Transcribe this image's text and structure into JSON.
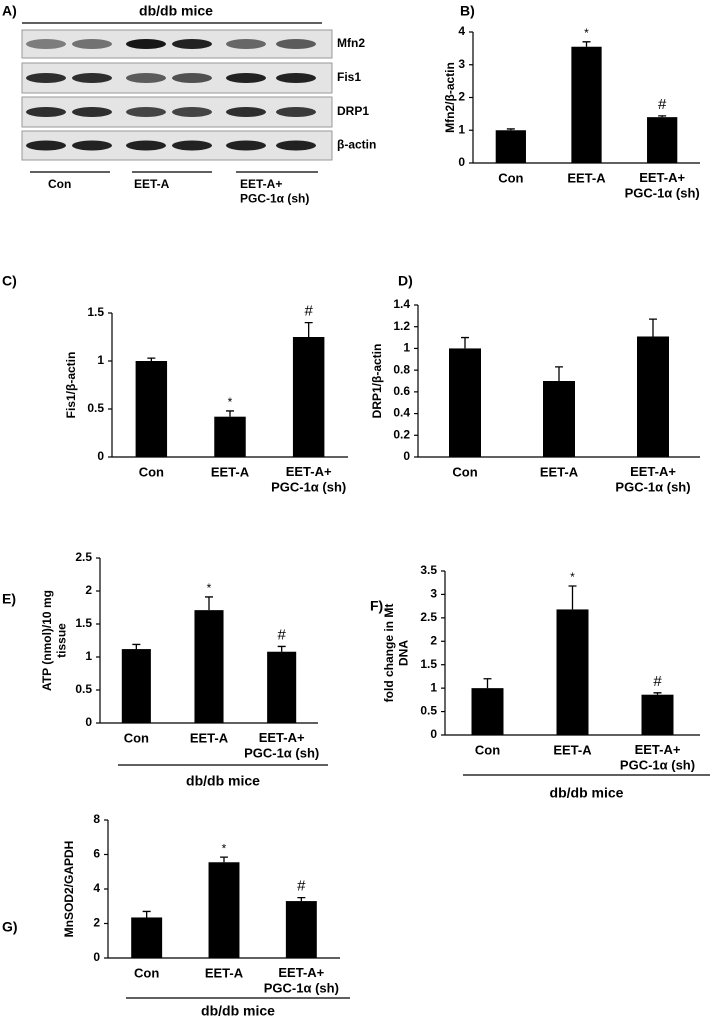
{
  "blot": {
    "label": "A)",
    "title": "db/db mice",
    "rows": [
      "Mfn2",
      "Fis1",
      "DRP1",
      "β-actin"
    ],
    "groups": [
      "Con",
      "EET-A",
      "EET-A+\nPGC-1α (sh)"
    ]
  },
  "chart_data": [
    {
      "type": "bar",
      "label": "B)",
      "ylabel": "Mfn2/β-actin",
      "categories": [
        "Con",
        "EET-A",
        "EET-A+\nPGC-1α (sh)"
      ],
      "values": [
        1.0,
        3.55,
        1.4
      ],
      "errors": [
        0.04,
        0.15,
        0.04
      ],
      "annotations": [
        null,
        "*",
        "#"
      ],
      "ylim": [
        0,
        4
      ],
      "yticks": [
        0,
        1,
        2,
        3,
        4
      ],
      "color": "#000000"
    },
    {
      "type": "bar",
      "label": "C)",
      "ylabel": "Fis1/β-actin",
      "categories": [
        "Con",
        "EET-A",
        "EET-A+\nPGC-1α (sh)"
      ],
      "values": [
        1.0,
        0.42,
        1.25
      ],
      "errors": [
        0.03,
        0.06,
        0.15
      ],
      "annotations": [
        null,
        "*",
        "#"
      ],
      "ylim": [
        0,
        1.5
      ],
      "yticks": [
        0,
        0.5,
        1,
        1.5
      ],
      "color": "#000000"
    },
    {
      "type": "bar",
      "label": "D)",
      "ylabel": "DRP1/β-actin",
      "categories": [
        "Con",
        "EET-A",
        "EET-A+\nPGC-1α (sh)"
      ],
      "values": [
        1.0,
        0.7,
        1.11
      ],
      "errors": [
        0.1,
        0.13,
        0.16
      ],
      "annotations": [
        null,
        null,
        null
      ],
      "ylim": [
        0,
        1.4
      ],
      "yticks": [
        0,
        0.2,
        0.4,
        0.6,
        0.8,
        1,
        1.2,
        1.4
      ],
      "color": "#000000"
    },
    {
      "type": "bar",
      "label": "E)",
      "ylabel": "ATP (nmol)/10 mg\ntissue",
      "categories": [
        "Con",
        "EET-A",
        "EET-A+\nPGC-1α (sh)"
      ],
      "values": [
        1.12,
        1.71,
        1.08
      ],
      "errors": [
        0.07,
        0.2,
        0.08
      ],
      "annotations": [
        null,
        "*",
        "#"
      ],
      "ylim": [
        0,
        2.5
      ],
      "yticks": [
        0,
        0.5,
        1,
        1.5,
        2,
        2.5
      ],
      "xlabel": "db/db mice",
      "color": "#000000"
    },
    {
      "type": "bar",
      "label": "F)",
      "ylabel": "fold change in Mt\nDNA",
      "categories": [
        "Con",
        "EET-A",
        "EET-A+\nPGC-1α (sh)"
      ],
      "values": [
        1.0,
        2.68,
        0.86
      ],
      "errors": [
        0.2,
        0.5,
        0.04
      ],
      "annotations": [
        null,
        "*",
        "#"
      ],
      "ylim": [
        0,
        3.5
      ],
      "yticks": [
        0,
        0.5,
        1,
        1.5,
        2,
        2.5,
        3,
        3.5
      ],
      "xlabel": "db/db mice",
      "color": "#000000"
    },
    {
      "type": "bar",
      "label": "G)",
      "ylabel": "MnSOD2/GAPDH",
      "categories": [
        "Con",
        "EET-A",
        "EET-A+\nPGC-1α (sh)"
      ],
      "values": [
        2.35,
        5.55,
        3.3
      ],
      "errors": [
        0.35,
        0.3,
        0.2
      ],
      "annotations": [
        null,
        "*",
        "#"
      ],
      "ylim": [
        0,
        8
      ],
      "yticks": [
        0,
        2,
        4,
        6,
        8
      ],
      "xlabel": "db/db mice",
      "color": "#000000"
    }
  ]
}
